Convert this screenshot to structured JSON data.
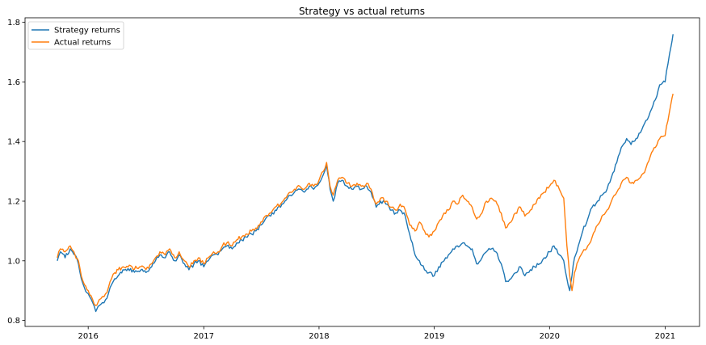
{
  "chart_data": {
    "type": "line",
    "title": "Strategy vs actual returns",
    "xlabel": "",
    "ylabel": "",
    "x_ticks": [
      "2016",
      "2017",
      "2018",
      "2019",
      "2020",
      "2021"
    ],
    "y_ticks": [
      "0.8",
      "1.0",
      "1.2",
      "1.4",
      "1.6",
      "1.8"
    ],
    "xlim": [
      "2015-06-15",
      "2021-04-20"
    ],
    "ylim": [
      0.78,
      1.815
    ],
    "grid": false,
    "legend_position": "upper-left",
    "series": [
      {
        "name": "Strategy returns",
        "color": "#1f77b4",
        "points": [
          [
            "2015-09-25",
            1.0
          ],
          [
            "2015-10-05",
            1.03
          ],
          [
            "2015-10-20",
            1.01
          ],
          [
            "2015-11-05",
            1.04
          ],
          [
            "2015-11-20",
            1.02
          ],
          [
            "2015-12-01",
            0.99
          ],
          [
            "2015-12-10",
            0.94
          ],
          [
            "2015-12-20",
            0.91
          ],
          [
            "2016-01-01",
            0.89
          ],
          [
            "2016-01-15",
            0.86
          ],
          [
            "2016-01-25",
            0.83
          ],
          [
            "2016-02-05",
            0.85
          ],
          [
            "2016-02-15",
            0.86
          ],
          [
            "2016-02-25",
            0.87
          ],
          [
            "2016-03-05",
            0.89
          ],
          [
            "2016-03-15",
            0.92
          ],
          [
            "2016-03-25",
            0.94
          ],
          [
            "2016-04-05",
            0.95
          ],
          [
            "2016-04-20",
            0.97
          ],
          [
            "2016-07-10",
            0.965
          ],
          [
            "2016-07-20",
            0.98
          ],
          [
            "2016-08-01",
            1.0
          ],
          [
            "2016-08-15",
            1.02
          ],
          [
            "2016-09-01",
            1.01
          ],
          [
            "2016-09-15",
            1.03
          ],
          [
            "2016-10-01",
            1.0
          ],
          [
            "2016-10-15",
            1.02
          ],
          [
            "2016-11-01",
            0.99
          ],
          [
            "2016-11-15",
            0.97
          ],
          [
            "2016-12-01",
            0.99
          ],
          [
            "2016-12-15",
            1.0
          ],
          [
            "2017-01-01",
            0.98
          ],
          [
            "2017-01-15",
            1.0
          ],
          [
            "2017-02-01",
            1.02
          ],
          [
            "2017-02-15",
            1.02
          ],
          [
            "2017-03-01",
            1.04
          ],
          [
            "2017-03-15",
            1.05
          ],
          [
            "2017-04-01",
            1.04
          ],
          [
            "2017-04-15",
            1.06
          ],
          [
            "2017-05-01",
            1.07
          ],
          [
            "2017-05-15",
            1.08
          ],
          [
            "2017-06-01",
            1.09
          ],
          [
            "2017-06-15",
            1.1
          ],
          [
            "2017-07-01",
            1.12
          ],
          [
            "2017-07-15",
            1.14
          ],
          [
            "2017-08-01",
            1.15
          ],
          [
            "2017-08-15",
            1.17
          ],
          [
            "2017-09-01",
            1.18
          ],
          [
            "2017-09-15",
            1.2
          ],
          [
            "2017-10-01",
            1.22
          ],
          [
            "2017-10-15",
            1.23
          ],
          [
            "2017-11-01",
            1.24
          ],
          [
            "2017-11-15",
            1.23
          ],
          [
            "2017-12-01",
            1.25
          ],
          [
            "2017-12-15",
            1.24
          ],
          [
            "2018-01-01",
            1.26
          ],
          [
            "2018-01-15",
            1.29
          ],
          [
            "2018-01-25",
            1.32
          ],
          [
            "2018-02-05",
            1.24
          ],
          [
            "2018-02-15",
            1.2
          ],
          [
            "2018-03-01",
            1.26
          ],
          [
            "2018-03-15",
            1.27
          ],
          [
            "2018-04-01",
            1.25
          ],
          [
            "2018-04-15",
            1.24
          ],
          [
            "2018-05-01",
            1.25
          ],
          [
            "2018-05-15",
            1.24
          ],
          [
            "2018-06-01",
            1.25
          ],
          [
            "2018-06-15",
            1.23
          ],
          [
            "2018-07-01",
            1.18
          ],
          [
            "2018-07-15",
            1.2
          ],
          [
            "2018-08-01",
            1.19
          ],
          [
            "2018-08-15",
            1.17
          ],
          [
            "2018-09-01",
            1.16
          ],
          [
            "2018-09-15",
            1.17
          ],
          [
            "2018-10-01",
            1.15
          ],
          [
            "2018-10-15",
            1.09
          ],
          [
            "2018-11-01",
            1.02
          ],
          [
            "2018-11-15",
            1.0
          ],
          [
            "2018-12-01",
            0.97
          ],
          [
            "2018-12-15",
            0.96
          ],
          [
            "2019-01-01",
            0.95
          ],
          [
            "2019-01-15",
            0.98
          ],
          [
            "2019-02-01",
            1.0
          ],
          [
            "2019-02-15",
            1.02
          ],
          [
            "2019-03-01",
            1.04
          ],
          [
            "2019-03-15",
            1.05
          ],
          [
            "2019-04-01",
            1.06
          ],
          [
            "2019-04-15",
            1.05
          ],
          [
            "2019-05-01",
            1.04
          ],
          [
            "2019-05-15",
            0.99
          ],
          [
            "2019-06-01",
            1.01
          ],
          [
            "2019-06-15",
            1.03
          ],
          [
            "2019-07-01",
            1.04
          ],
          [
            "2019-07-15",
            1.03
          ],
          [
            "2019-08-01",
            0.99
          ],
          [
            "2019-08-15",
            0.93
          ],
          [
            "2019-09-01",
            0.94
          ],
          [
            "2019-09-15",
            0.96
          ],
          [
            "2019-10-01",
            0.98
          ],
          [
            "2019-10-15",
            0.95
          ],
          [
            "2019-11-01",
            0.97
          ],
          [
            "2019-11-15",
            0.98
          ],
          [
            "2019-12-01",
            0.99
          ],
          [
            "2019-12-15",
            1.01
          ],
          [
            "2020-01-01",
            1.03
          ],
          [
            "2020-01-15",
            1.05
          ],
          [
            "2020-02-01",
            1.02
          ],
          [
            "2020-02-15",
            1.0
          ],
          [
            "2020-02-25",
            0.94
          ],
          [
            "2020-03-05",
            0.9
          ],
          [
            "2020-03-12",
            0.95
          ],
          [
            "2020-03-20",
            1.01
          ],
          [
            "2020-04-01",
            1.05
          ],
          [
            "2020-04-15",
            1.1
          ],
          [
            "2020-05-01",
            1.14
          ],
          [
            "2020-05-15",
            1.18
          ],
          [
            "2020-06-01",
            1.2
          ],
          [
            "2020-06-15",
            1.22
          ],
          [
            "2020-07-01",
            1.24
          ],
          [
            "2020-07-15",
            1.28
          ],
          [
            "2020-08-01",
            1.33
          ],
          [
            "2020-08-15",
            1.38
          ],
          [
            "2020-09-01",
            1.41
          ],
          [
            "2020-09-15",
            1.39
          ],
          [
            "2020-10-01",
            1.41
          ],
          [
            "2020-10-15",
            1.43
          ],
          [
            "2020-11-01",
            1.47
          ],
          [
            "2020-11-15",
            1.5
          ],
          [
            "2020-12-01",
            1.54
          ],
          [
            "2020-12-15",
            1.59
          ],
          [
            "2021-01-01",
            1.6
          ],
          [
            "2021-01-10",
            1.66
          ],
          [
            "2021-01-20",
            1.72
          ],
          [
            "2021-01-26",
            1.76
          ]
        ]
      },
      {
        "name": "Actual returns",
        "color": "#ff7f0e",
        "points": [
          [
            "2015-09-25",
            1.01
          ],
          [
            "2015-10-05",
            1.04
          ],
          [
            "2015-10-20",
            1.03
          ],
          [
            "2015-11-05",
            1.05
          ],
          [
            "2015-11-20",
            1.02
          ],
          [
            "2015-12-01",
            1.0
          ],
          [
            "2015-12-10",
            0.95
          ],
          [
            "2015-12-20",
            0.92
          ],
          [
            "2016-01-01",
            0.9
          ],
          [
            "2016-01-15",
            0.87
          ],
          [
            "2016-01-25",
            0.85
          ],
          [
            "2016-02-05",
            0.87
          ],
          [
            "2016-02-15",
            0.88
          ],
          [
            "2016-02-25",
            0.89
          ],
          [
            "2016-03-05",
            0.91
          ],
          [
            "2016-03-15",
            0.94
          ],
          [
            "2016-03-25",
            0.96
          ],
          [
            "2016-04-05",
            0.97
          ],
          [
            "2016-04-20",
            0.98
          ],
          [
            "2016-07-10",
            0.975
          ],
          [
            "2016-07-20",
            0.99
          ],
          [
            "2016-08-01",
            1.01
          ],
          [
            "2016-08-15",
            1.03
          ],
          [
            "2016-09-01",
            1.02
          ],
          [
            "2016-09-15",
            1.04
          ],
          [
            "2016-10-01",
            1.01
          ],
          [
            "2016-10-15",
            1.03
          ],
          [
            "2016-11-01",
            1.0
          ],
          [
            "2016-11-15",
            0.98
          ],
          [
            "2016-12-01",
            1.0
          ],
          [
            "2016-12-15",
            1.01
          ],
          [
            "2017-01-01",
            0.99
          ],
          [
            "2017-01-15",
            1.01
          ],
          [
            "2017-02-01",
            1.03
          ],
          [
            "2017-02-15",
            1.03
          ],
          [
            "2017-03-01",
            1.05
          ],
          [
            "2017-03-15",
            1.06
          ],
          [
            "2017-04-01",
            1.05
          ],
          [
            "2017-04-15",
            1.07
          ],
          [
            "2017-05-01",
            1.08
          ],
          [
            "2017-05-15",
            1.09
          ],
          [
            "2017-06-01",
            1.1
          ],
          [
            "2017-06-15",
            1.11
          ],
          [
            "2017-07-01",
            1.13
          ],
          [
            "2017-07-15",
            1.15
          ],
          [
            "2017-08-01",
            1.16
          ],
          [
            "2017-08-15",
            1.18
          ],
          [
            "2017-09-01",
            1.19
          ],
          [
            "2017-09-15",
            1.21
          ],
          [
            "2017-10-01",
            1.23
          ],
          [
            "2017-10-15",
            1.24
          ],
          [
            "2017-11-01",
            1.25
          ],
          [
            "2017-11-15",
            1.24
          ],
          [
            "2017-12-01",
            1.26
          ],
          [
            "2017-12-15",
            1.25
          ],
          [
            "2018-01-01",
            1.27
          ],
          [
            "2018-01-15",
            1.3
          ],
          [
            "2018-01-25",
            1.33
          ],
          [
            "2018-02-05",
            1.25
          ],
          [
            "2018-02-15",
            1.22
          ],
          [
            "2018-03-01",
            1.27
          ],
          [
            "2018-03-15",
            1.28
          ],
          [
            "2018-04-01",
            1.26
          ],
          [
            "2018-04-15",
            1.25
          ],
          [
            "2018-05-01",
            1.26
          ],
          [
            "2018-05-15",
            1.25
          ],
          [
            "2018-06-01",
            1.26
          ],
          [
            "2018-06-15",
            1.24
          ],
          [
            "2018-07-01",
            1.19
          ],
          [
            "2018-07-15",
            1.21
          ],
          [
            "2018-08-01",
            1.2
          ],
          [
            "2018-08-15",
            1.18
          ],
          [
            "2018-09-01",
            1.17
          ],
          [
            "2018-09-15",
            1.19
          ],
          [
            "2018-10-01",
            1.17
          ],
          [
            "2018-10-15",
            1.12
          ],
          [
            "2018-11-01",
            1.1
          ],
          [
            "2018-11-15",
            1.13
          ],
          [
            "2018-12-01",
            1.1
          ],
          [
            "2018-12-15",
            1.08
          ],
          [
            "2019-01-01",
            1.1
          ],
          [
            "2019-01-15",
            1.13
          ],
          [
            "2019-02-01",
            1.16
          ],
          [
            "2019-02-15",
            1.17
          ],
          [
            "2019-03-01",
            1.2
          ],
          [
            "2019-03-15",
            1.19
          ],
          [
            "2019-04-01",
            1.22
          ],
          [
            "2019-04-15",
            1.2
          ],
          [
            "2019-05-01",
            1.18
          ],
          [
            "2019-05-15",
            1.14
          ],
          [
            "2019-06-01",
            1.16
          ],
          [
            "2019-06-15",
            1.2
          ],
          [
            "2019-07-01",
            1.21
          ],
          [
            "2019-07-15",
            1.2
          ],
          [
            "2019-08-01",
            1.16
          ],
          [
            "2019-08-15",
            1.11
          ],
          [
            "2019-09-01",
            1.13
          ],
          [
            "2019-09-15",
            1.16
          ],
          [
            "2019-10-01",
            1.18
          ],
          [
            "2019-10-15",
            1.15
          ],
          [
            "2019-11-01",
            1.17
          ],
          [
            "2019-11-15",
            1.19
          ],
          [
            "2019-12-01",
            1.21
          ],
          [
            "2019-12-15",
            1.23
          ],
          [
            "2020-01-01",
            1.25
          ],
          [
            "2020-01-15",
            1.27
          ],
          [
            "2020-02-01",
            1.24
          ],
          [
            "2020-02-15",
            1.21
          ],
          [
            "2020-02-25",
            1.05
          ],
          [
            "2020-03-05",
            0.95
          ],
          [
            "2020-03-12",
            0.9
          ],
          [
            "2020-03-20",
            0.96
          ],
          [
            "2020-04-01",
            1.0
          ],
          [
            "2020-04-15",
            1.03
          ],
          [
            "2020-05-01",
            1.05
          ],
          [
            "2020-05-15",
            1.08
          ],
          [
            "2020-06-01",
            1.12
          ],
          [
            "2020-06-15",
            1.15
          ],
          [
            "2020-07-01",
            1.17
          ],
          [
            "2020-07-15",
            1.2
          ],
          [
            "2020-08-01",
            1.23
          ],
          [
            "2020-08-15",
            1.26
          ],
          [
            "2020-09-01",
            1.28
          ],
          [
            "2020-09-15",
            1.26
          ],
          [
            "2020-10-01",
            1.27
          ],
          [
            "2020-10-15",
            1.28
          ],
          [
            "2020-11-01",
            1.31
          ],
          [
            "2020-11-15",
            1.35
          ],
          [
            "2020-12-01",
            1.38
          ],
          [
            "2020-12-15",
            1.41
          ],
          [
            "2021-01-01",
            1.42
          ],
          [
            "2021-01-10",
            1.47
          ],
          [
            "2021-01-20",
            1.53
          ],
          [
            "2021-01-26",
            1.56
          ]
        ]
      }
    ]
  }
}
